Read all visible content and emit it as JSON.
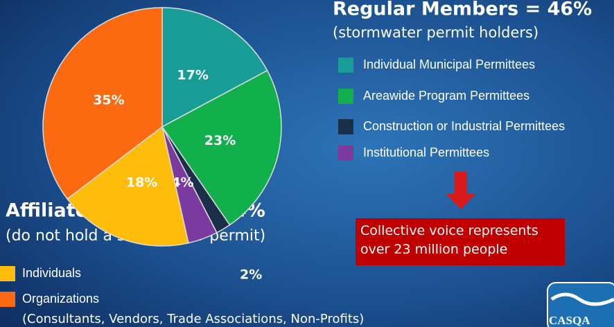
{
  "chart_data": {
    "type": "pie",
    "categories": [
      "Individual Municipal Permittees",
      "Areawide Program Permittees",
      "Construction or Industrial Permittees",
      "Institutional Permittees",
      "Individuals",
      "Organizations"
    ],
    "values": [
      17,
      23,
      2,
      4,
      18,
      35
    ],
    "value_labels": [
      "17%",
      "23%",
      "2%",
      "4%",
      "18%",
      "35%"
    ],
    "colors": [
      "#179c96",
      "#12b04c",
      "#1c2f48",
      "#7b3a9e",
      "#fdbd0a",
      "#fb6a10"
    ],
    "regular_heading": "Regular Members = 46%",
    "regular_subheading": "(stormwater permit holders)",
    "affiliate_heading": "Affiliate Members = 54%",
    "affiliate_subheading": "(do not hold a stormwater permit)",
    "affiliate_note": "(Consultants, Vendors, Trade Associations, Non-Profits)",
    "callout": "Collective voice represents over 23 million people",
    "logo": "CASQA"
  }
}
